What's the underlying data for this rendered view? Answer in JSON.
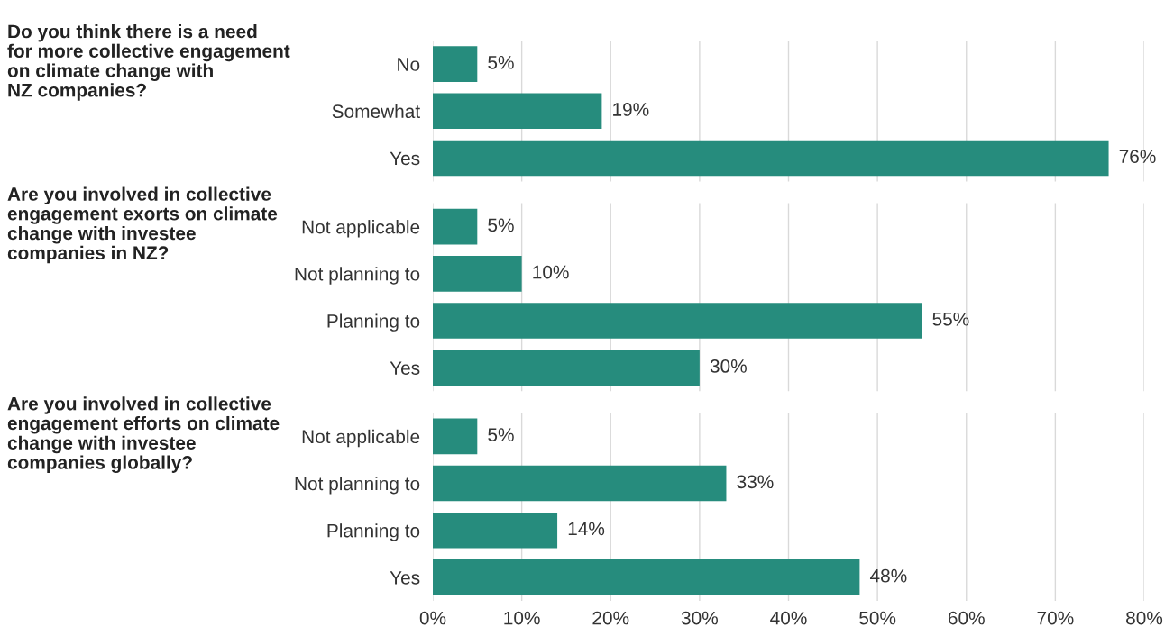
{
  "chart_data": [
    {
      "type": "bar",
      "orientation": "horizontal",
      "title": "Do you think there is a need\nfor more collective engagement\non climate change with\nNZ companies?",
      "categories": [
        "No",
        "Somewhat",
        "Yes"
      ],
      "values": [
        5,
        19,
        76
      ],
      "color": "#268c7d",
      "xlim": [
        0,
        80
      ],
      "xticks": [
        0,
        10,
        20,
        30,
        40,
        50,
        60,
        70,
        80
      ],
      "value_labels": [
        "5%",
        "19%",
        "76%"
      ],
      "grid": "x",
      "tick_labels": "y"
    },
    {
      "type": "bar",
      "orientation": "horizontal",
      "title": "Are you involved in collective\nengagement exorts on climate\nchange with investee\ncompanies in NZ?",
      "categories": [
        "Not applicable",
        "Not planning to",
        "Planning to",
        "Yes"
      ],
      "values": [
        5,
        10,
        55,
        30
      ],
      "color": "#268c7d",
      "xlim": [
        0,
        80
      ],
      "xticks": [
        0,
        10,
        20,
        30,
        40,
        50,
        60,
        70,
        80
      ],
      "value_labels": [
        "5%",
        "10%",
        "55%",
        "30%"
      ],
      "grid": "x",
      "tick_labels": "y"
    },
    {
      "type": "bar",
      "orientation": "horizontal",
      "title": "Are you involved in collective\nengagement efforts on climate\nchange with investee\ncompanies globally?",
      "categories": [
        "Not applicable",
        "Not planning to",
        "Planning to",
        "Yes"
      ],
      "values": [
        5,
        33,
        14,
        48
      ],
      "color": "#268c7d",
      "xlim": [
        0,
        80
      ],
      "xticks": [
        {
          "value": 0,
          "label": "0%"
        },
        {
          "value": 10,
          "label": "10%"
        },
        {
          "value": 20,
          "label": "20%"
        },
        {
          "value": 30,
          "label": "30%"
        },
        {
          "value": 40,
          "label": "40%"
        },
        {
          "value": 50,
          "label": "50%"
        },
        {
          "value": 60,
          "label": "60%"
        },
        {
          "value": 70,
          "label": "70%"
        },
        {
          "value": 80,
          "label": "80%"
        }
      ],
      "value_labels": [
        "5%",
        "33%",
        "14%",
        "48%"
      ],
      "grid": "x"
    }
  ]
}
